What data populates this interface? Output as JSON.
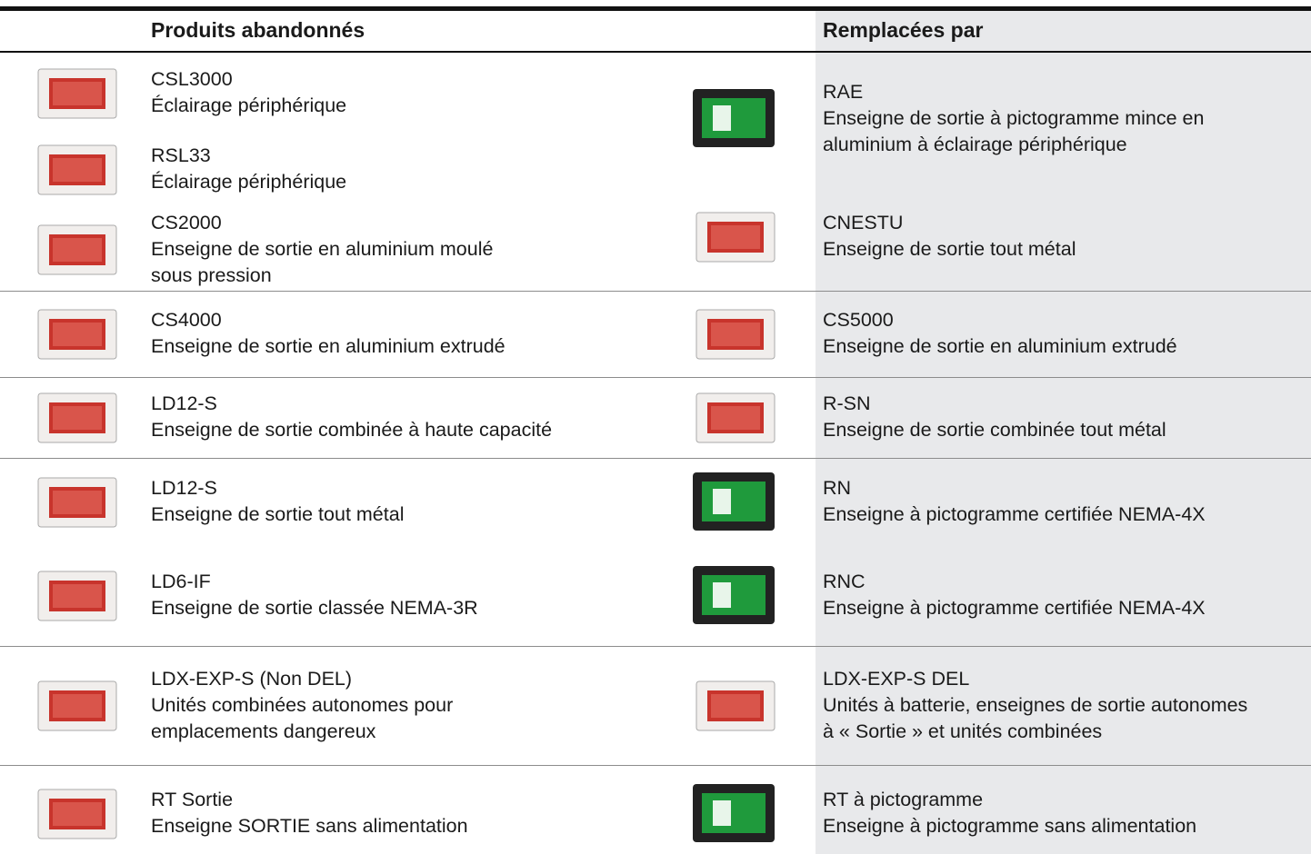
{
  "header": {
    "left": "Produits abandonnés",
    "right": "Remplacées par"
  },
  "groups": [
    {
      "left": [
        {
          "code": "CSL3000",
          "desc": [
            "Éclairage périphérique"
          ]
        },
        {
          "code": "RSL33",
          "desc": [
            "Éclairage périphérique"
          ]
        },
        {
          "code": "CS2000",
          "desc": [
            "Enseigne de sortie en aluminium moulé",
            "sous pression"
          ]
        }
      ],
      "right": [
        {
          "code": "RAE",
          "desc": [
            "Enseigne de sortie à pictogramme mince en",
            "aluminium à éclairage périphérique"
          ]
        },
        {
          "code": "CNESTU",
          "desc": [
            "Enseigne de sortie tout métal"
          ]
        }
      ]
    },
    {
      "left": [
        {
          "code": "CS4000",
          "desc": [
            "Enseigne de sortie en aluminium extrudé"
          ]
        }
      ],
      "right": [
        {
          "code": "CS5000",
          "desc": [
            "Enseigne de sortie en aluminium extrudé"
          ]
        }
      ]
    },
    {
      "left": [
        {
          "code": "LD12-S",
          "desc": [
            "Enseigne de sortie combinée à haute capacité"
          ]
        }
      ],
      "right": [
        {
          "code": "R-SN",
          "desc": [
            "Enseigne de sortie combinée tout métal"
          ]
        }
      ]
    },
    {
      "left": [
        {
          "code": "LD12-S",
          "desc": [
            "Enseigne de sortie tout métal"
          ]
        },
        {
          "code": "LD6-IF",
          "desc": [
            "Enseigne de sortie classée NEMA-3R"
          ]
        }
      ],
      "right": [
        {
          "code": "RN",
          "desc": [
            "Enseigne à pictogramme certifiée NEMA-4X"
          ]
        },
        {
          "code": "RNC",
          "desc": [
            "Enseigne à pictogramme certifiée NEMA-4X"
          ]
        }
      ]
    },
    {
      "left": [
        {
          "code": "LDX-EXP-S (Non DEL)",
          "desc": [
            "Unités combinées autonomes pour",
            "emplacements dangereux"
          ]
        }
      ],
      "right": [
        {
          "code": "LDX-EXP-S DEL",
          "desc": [
            "Unités à batterie, enseignes de sortie autonomes",
            "à « Sortie » et unités combinées"
          ]
        }
      ]
    },
    {
      "left": [
        {
          "code": "RT Sortie",
          "desc": [
            "Enseigne SORTIE sans alimentation"
          ]
        }
      ],
      "right": [
        {
          "code": "RT à pictogramme",
          "desc": [
            "Enseigne à pictogramme sans alimentation"
          ]
        }
      ]
    }
  ]
}
